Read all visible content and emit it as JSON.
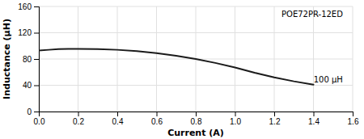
{
  "chart_data": {
    "type": "line",
    "xlabel": "Current (A)",
    "ylabel": "Inductance (μH)",
    "x": [
      0.0,
      0.05,
      0.1,
      0.15,
      0.2,
      0.3,
      0.4,
      0.5,
      0.6,
      0.7,
      0.8,
      0.9,
      1.0,
      1.1,
      1.2,
      1.3,
      1.4
    ],
    "values": [
      93,
      94,
      95,
      95.5,
      95.5,
      95,
      94,
      92,
      89,
      85,
      80,
      74,
      67,
      59,
      52,
      46,
      41
    ],
    "color": "#1a1a1a",
    "xlim": [
      0,
      1.6
    ],
    "ylim": [
      0,
      160
    ],
    "xticks": [
      {
        "value": 0,
        "label": "0.0"
      },
      0.2,
      0.4,
      0.6,
      0.8,
      {
        "value": 1.0,
        "label": "1.0"
      },
      1.2,
      1.4,
      1.6
    ],
    "yticks": [
      0,
      40,
      80,
      120,
      160
    ],
    "grid": true,
    "annotations": [
      {
        "text": "POE72PR-12ED",
        "x": 1.55,
        "y": 153
      },
      {
        "text": "100 μH",
        "x": 1.55,
        "y": 48
      }
    ]
  }
}
